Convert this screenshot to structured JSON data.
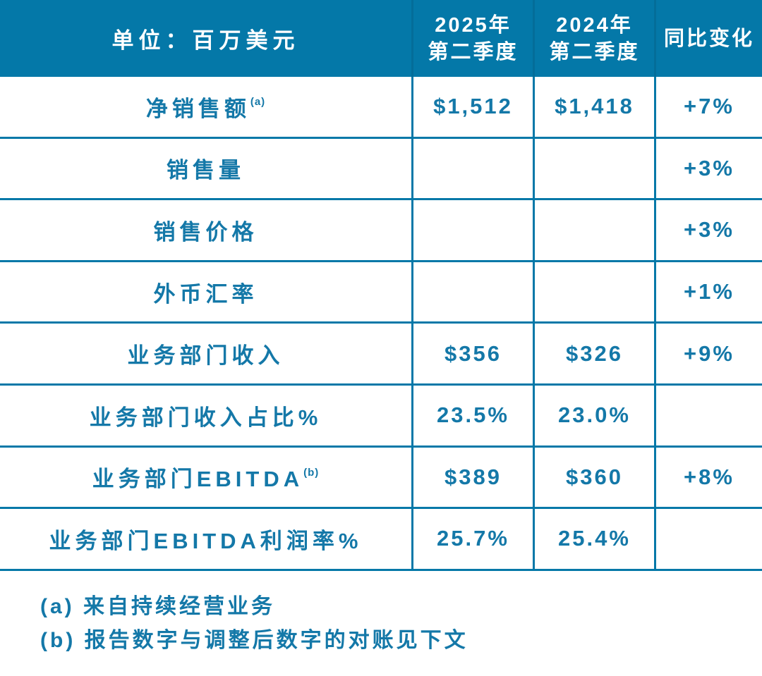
{
  "colors": {
    "teal": "#0478A8",
    "header_divider": "#046D99",
    "header_text": "#FFFFFF",
    "body_text": "#1478A8"
  },
  "header": {
    "unit_label": "单位：百万美元",
    "col_2025_line1": "2025年",
    "col_2025_line2": "第二季度",
    "col_2024_line1": "2024年",
    "col_2024_line2": "第二季度",
    "col_change": "同比变化"
  },
  "rows": [
    {
      "label": "净销售额",
      "sup": "(a)",
      "q2_2025": "$1,512",
      "q2_2024": "$1,418",
      "yoy_change": "+7%"
    },
    {
      "label": "销售量",
      "sup": "",
      "q2_2025": "",
      "q2_2024": "",
      "yoy_change": "+3%"
    },
    {
      "label": "销售价格",
      "sup": "",
      "q2_2025": "",
      "q2_2024": "",
      "yoy_change": "+3%"
    },
    {
      "label": "外币汇率",
      "sup": "",
      "q2_2025": "",
      "q2_2024": "",
      "yoy_change": "+1%"
    },
    {
      "label": "业务部门收入",
      "sup": "",
      "q2_2025": "$356",
      "q2_2024": "$326",
      "yoy_change": "+9%"
    },
    {
      "label": "业务部门收入占比%",
      "sup": "",
      "q2_2025": "23.5%",
      "q2_2024": "23.0%",
      "yoy_change": ""
    },
    {
      "label": "业务部门EBITDA",
      "sup": "(b)",
      "q2_2025": "$389",
      "q2_2024": "$360",
      "yoy_change": "+8%"
    },
    {
      "label": "业务部门EBITDA利润率%",
      "sup": "",
      "q2_2025": "25.7%",
      "q2_2024": "25.4%",
      "yoy_change": ""
    }
  ],
  "footnotes": {
    "a": "(a) 来自持续经营业务",
    "b": "(b) 报告数字与调整后数字的对账见下文"
  },
  "chart_data": {
    "type": "table",
    "title": "单位：百万美元",
    "columns": [
      "单位：百万美元",
      "2025年第二季度",
      "2024年第二季度",
      "同比变化"
    ],
    "rows": [
      [
        "净销售额(a)",
        "$1,512",
        "$1,418",
        "+7%"
      ],
      [
        "销售量",
        "",
        "",
        "+3%"
      ],
      [
        "销售价格",
        "",
        "",
        "+3%"
      ],
      [
        "外币汇率",
        "",
        "",
        "+1%"
      ],
      [
        "业务部门收入",
        "$356",
        "$326",
        "+9%"
      ],
      [
        "业务部门收入占比%",
        "23.5%",
        "23.0%",
        ""
      ],
      [
        "业务部门EBITDA(b)",
        "$389",
        "$360",
        "+8%"
      ],
      [
        "业务部门EBITDA利润率%",
        "25.7%",
        "25.4%",
        ""
      ]
    ]
  }
}
